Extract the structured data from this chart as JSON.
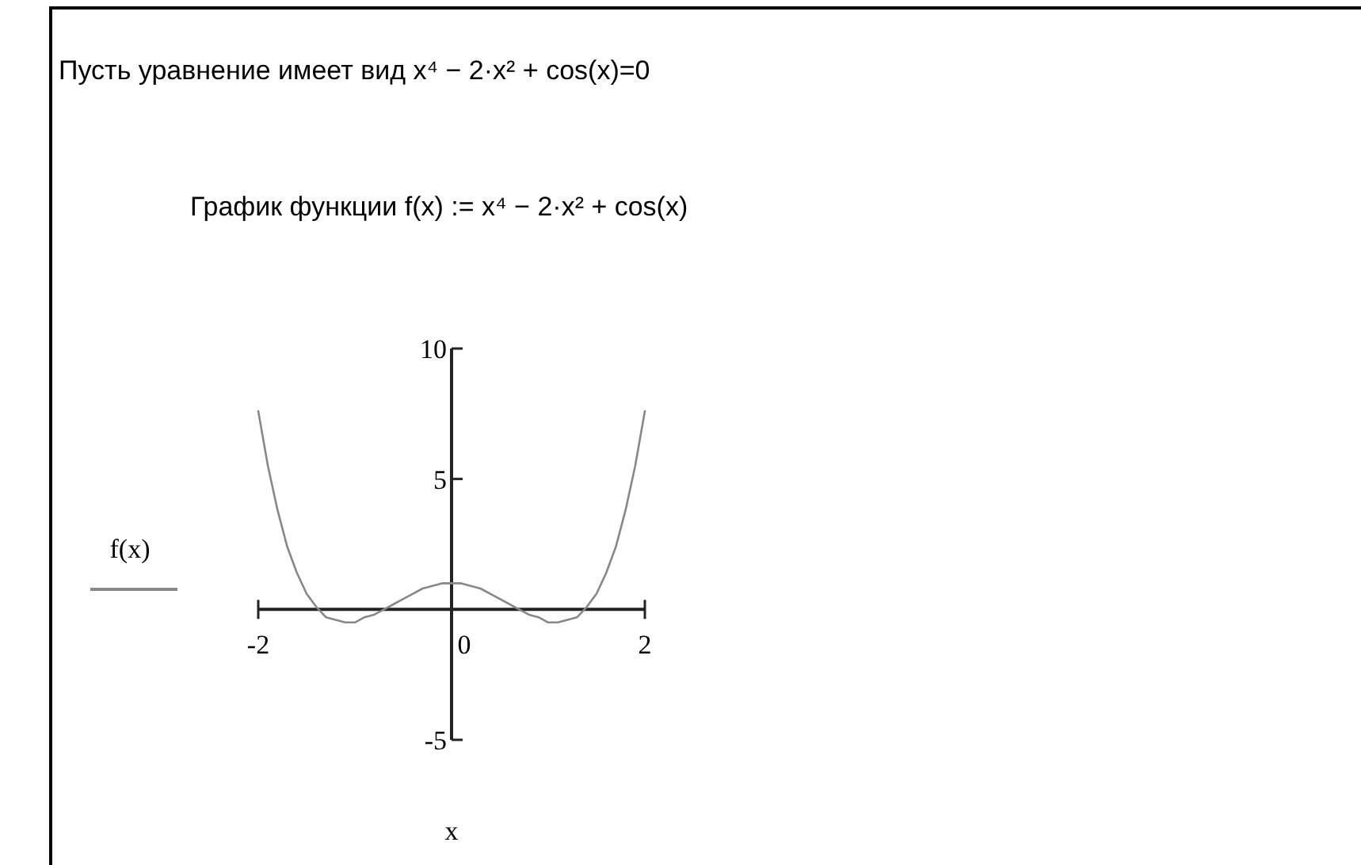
{
  "chart_data": {
    "type": "line",
    "title": "Пусть уравнение имеет вид x⁴ − 2·x² + cos(x)=0",
    "subtitle": "График функции f(x) := x⁴ − 2·x² + cos(x)",
    "xlabel": "x",
    "x": [
      -2,
      -1.9,
      -1.8,
      -1.7,
      -1.6,
      -1.5,
      -1.4,
      -1.3,
      -1.2,
      -1.1,
      -1,
      -0.9,
      -0.8,
      -0.7,
      -0.6,
      -0.5,
      -0.4,
      -0.3,
      -0.2,
      -0.1,
      0,
      0.1,
      0.2,
      0.3,
      0.4,
      0.5,
      0.6,
      0.7,
      0.8,
      0.9,
      1,
      1.1,
      1.2,
      1.3,
      1.4,
      1.5,
      1.6,
      1.7,
      1.8,
      1.9,
      2
    ],
    "series": [
      {
        "name": "f(x)",
        "color": "#888888",
        "values": [
          7.6,
          5.5,
          3.8,
          2.4,
          1.4,
          0.6,
          0.1,
          -0.3,
          -0.4,
          -0.5,
          -0.5,
          -0.3,
          -0.2,
          0,
          0.2,
          0.4,
          0.6,
          0.8,
          0.9,
          1,
          1,
          1,
          0.9,
          0.8,
          0.6,
          0.4,
          0.2,
          0,
          -0.2,
          -0.3,
          -0.5,
          -0.5,
          -0.4,
          -0.3,
          0.1,
          0.6,
          1.4,
          2.4,
          3.8,
          5.5,
          7.6
        ]
      }
    ],
    "xlim": [
      -2,
      2
    ],
    "ylim": [
      -5,
      10
    ],
    "xticks": [
      -2,
      0,
      2
    ],
    "yticks": [
      -5,
      5,
      10
    ],
    "legend": "left",
    "grid": false,
    "marker": "none",
    "line_style": "solid"
  }
}
